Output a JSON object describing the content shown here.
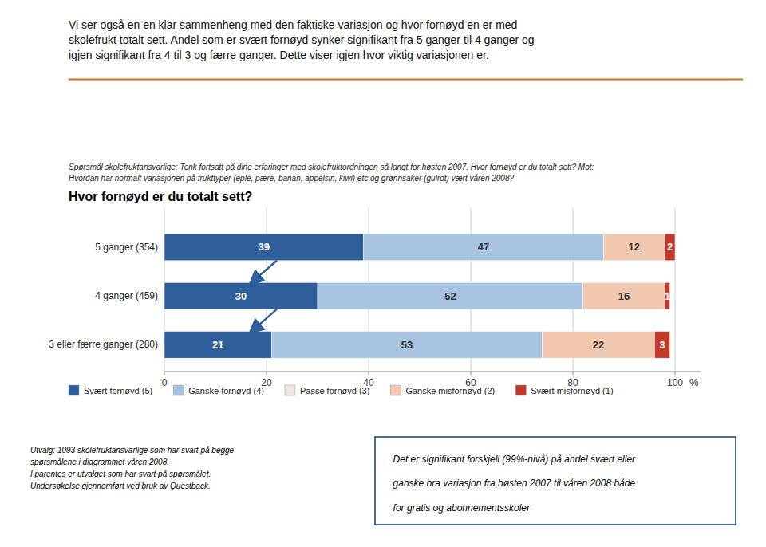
{
  "chart_data": {
    "type": "bar",
    "orientation": "horizontal",
    "stacked": true,
    "data_labels": true,
    "grid": true,
    "title": "Hvor fornøyd er du totalt sett?",
    "subtitle": [
      "Spørsmål skolefruktansvarlige: Tenk fortsatt på dine erfaringer med skolefruktordningen så langt for høsten 2007. Hvor fornøyd er du totalt sett? Mot:",
      "Hvordan har normalt variasjonen på frukttyper (eple, pære, banan, appelsin, kiwi) etc og grønnsaker (gulrot)  vært våren 2008?"
    ],
    "header": [
      "Vi ser også en  en klar sammenheng med den faktiske variasjon og hvor fornøyd en er med",
      "skolefrukt totalt sett.  Andel som er svært fornøyd synker signifikant fra 5 ganger til 4 ganger og",
      "igjen signifikant fra 4 til 3 og færre ganger.  Dette viser igjen hvor viktig variasjonen er."
    ],
    "x_label": "%",
    "categories": [
      "5 ganger (354)",
      "4 ganger (459)",
      "3 eller færre ganger (280)"
    ],
    "series": [
      {
        "name": "Svært fornøyd (5)",
        "color": "#2E5F9A",
        "values": [
          39,
          30,
          21
        ]
      },
      {
        "name": "Ganske fornøyd (4)",
        "color": "#A8C4E0",
        "values": [
          47,
          52,
          53
        ]
      },
      {
        "name": "Passe fornøyd (3)",
        "color": "#F0E8DF",
        "values": [
          0,
          0,
          0
        ]
      },
      {
        "name": "Ganske misfornøyd (2)",
        "color": "#F0C8B0",
        "values": [
          12,
          16,
          22
        ]
      },
      {
        "name": "Svært misfornøyd (1)",
        "color": "#C0392B",
        "values": [
          2,
          1,
          3
        ]
      }
    ],
    "xlim": [
      0,
      105
    ],
    "xticks": [
      0,
      20,
      40,
      60,
      80,
      100
    ],
    "footnotes": [
      "Utvalg:  1093 skolefruktansvarlige som har svart på  begge",
      "spørsmålene i diagrammet våren 2008.",
      "I parentes er utvalget som har svart på spørsmålet.",
      "Undersøkelse gjennomført ved bruk av Questback."
    ],
    "box_notes": [
      "Det er signifikant forskjell (99%-nivå) på andel svært eller",
      "ganske bra variasjon fra høsten 2007 til våren 2008 både",
      "for gratis og abonnementsskoler"
    ]
  }
}
